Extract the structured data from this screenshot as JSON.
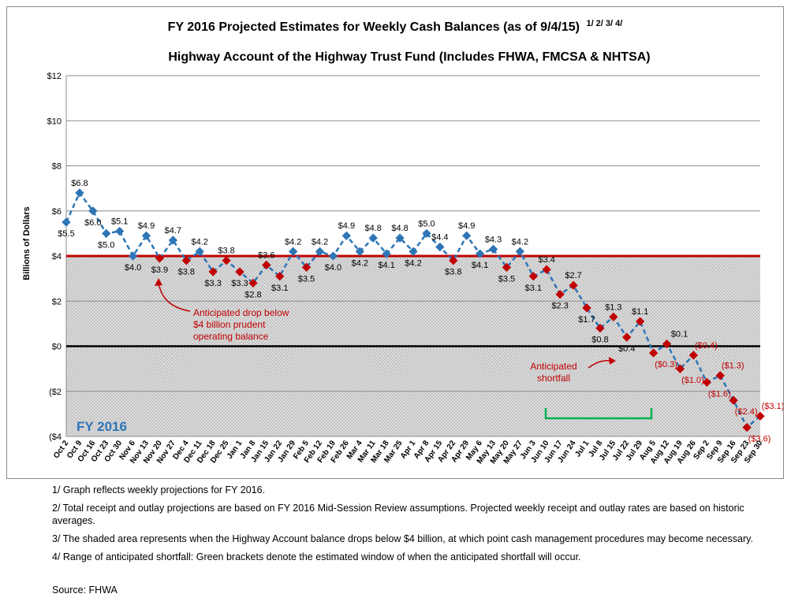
{
  "chart_data": {
    "type": "line",
    "title_main": "FY 2016 Projected Estimates for Weekly Cash Balances (as of 9/4/15)",
    "title_footnote_refs": "1/ 2/ 3/ 4/",
    "title_line2": "Highway Account of the Highway Trust Fund (Includes FHWA, FMCSA & NHTSA)",
    "ylabel": "Billions of Dollars",
    "ylim": [
      -4,
      12
    ],
    "y_ticks": [
      12,
      10,
      8,
      6,
      4,
      2,
      0,
      -2,
      -4
    ],
    "y_tick_labels": [
      "$12",
      "$10",
      "$8",
      "$6",
      "$4",
      "$2",
      "$0",
      "($2",
      "($4"
    ],
    "grid": true,
    "threshold": 4,
    "categories": [
      "Oct 2",
      "Oct 9",
      "Oct 16",
      "Oct 23",
      "Oct 30",
      "Nov 6",
      "Nov 13",
      "Nov 20",
      "Nov 27",
      "Dec 4",
      "Dec 11",
      "Dec 18",
      "Dec 25",
      "Jan 1",
      "Jan 8",
      "Jan 15",
      "Jan 22",
      "Jan 29",
      "Feb 5",
      "Feb 12",
      "Feb 19",
      "Feb 26",
      "Mar 4",
      "Mar 11",
      "Mar 18",
      "Mar 25",
      "Apr 1",
      "Apr 8",
      "Apr 15",
      "Apr 22",
      "Apr 29",
      "May 6",
      "May 13",
      "May 20",
      "May 27",
      "Jun 3",
      "Jun 10",
      "Jun 17",
      "Jun 24",
      "Jul 1",
      "Jul 8",
      "Jul 15",
      "Jul 22",
      "Jul 29",
      "Aug 5",
      "Aug 12",
      "Aug 19",
      "Aug 26",
      "Sep 2",
      "Sep 9",
      "Sep 16",
      "Sep 23",
      "Sep 30"
    ],
    "values": [
      5.5,
      6.8,
      6.0,
      5.0,
      5.1,
      4.0,
      4.9,
      3.9,
      4.7,
      3.8,
      4.2,
      3.3,
      3.8,
      3.3,
      2.8,
      3.6,
      3.1,
      4.2,
      3.5,
      4.2,
      4.0,
      4.9,
      4.2,
      4.8,
      4.1,
      4.8,
      4.2,
      5.0,
      4.4,
      3.8,
      4.9,
      4.1,
      4.3,
      3.5,
      4.2,
      3.1,
      3.4,
      2.3,
      2.7,
      1.7,
      0.8,
      1.3,
      0.4,
      1.1,
      -0.3,
      0.1,
      -1.0,
      -0.4,
      -1.6,
      -1.3,
      -2.4,
      -3.6,
      -3.1
    ],
    "value_labels": [
      "$5.5",
      "$6.8",
      "$6.0",
      "$5.0",
      "$5.1",
      "$4.0",
      "$4.9",
      "$3.9",
      "$4.7",
      "$3.8",
      "$4.2",
      "$3.3",
      "$3.8",
      "$3.3",
      "$2.8",
      "$3.6",
      "$3.1",
      "$4.2",
      "$3.5",
      "$4.2",
      "$4.0",
      "$4.9",
      "$4.2",
      "$4.8",
      "$4.1",
      "$4.8",
      "$4.2",
      "$5.0",
      "$4.4",
      "$3.8",
      "$4.9",
      "$4.1",
      "$4.3",
      "$3.5",
      "$4.2",
      "$3.1",
      "$3.4",
      "$2.3",
      "$2.7",
      "$1.7",
      "$0.8",
      "$1.3",
      "$0.4",
      "$1.1",
      "($0.3)",
      "$0.1",
      "($1.0)",
      "($0.4)",
      "($1.6)",
      "($1.3)",
      "($2.4)",
      "($3.6)",
      "($3.1)"
    ],
    "annotations": {
      "fy_label": "FY 2016",
      "drop_note": [
        "Anticipated drop below",
        "$4 billion prudent",
        "operating balance"
      ],
      "shortfall_note": [
        "Anticipated",
        "shortfall"
      ]
    },
    "colors": {
      "line": "#2e75b6",
      "marker_above": "#2e75b6",
      "marker_below": "#c00000",
      "threshold": "#c00000",
      "zero_line": "#000000",
      "bracket": "#00b050",
      "label_red": "#c00000",
      "fy_label": "#2e75b6"
    }
  },
  "notes": [
    "1/ Graph reflects weekly projections for FY 2016.",
    "2/ Total receipt and outlay projections are based on FY 2016 Mid-Session Review assumptions.  Projected weekly receipt and outlay rates are based on historic averages.",
    "3/ The shaded area represents when the Highway Account balance drops below $4 billion, at which point cash management procedures may become necessary.",
    "4/ Range of anticipated shortfall: Green brackets denote the estimated window of when the anticipated shortfall will occur."
  ],
  "source": "Source: FHWA"
}
